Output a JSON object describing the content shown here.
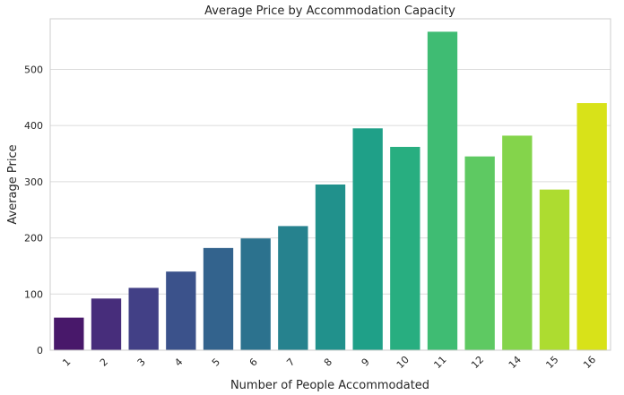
{
  "chart_data": {
    "type": "bar",
    "title": "Average Price by Accommodation Capacity",
    "xlabel": "Number of People Accommodated",
    "ylabel": "Average Price",
    "categories": [
      "1",
      "2",
      "3",
      "4",
      "5",
      "6",
      "7",
      "8",
      "9",
      "10",
      "11",
      "12",
      "14",
      "15",
      "16"
    ],
    "values": [
      58,
      92,
      111,
      140,
      182,
      199,
      221,
      295,
      395,
      362,
      567,
      345,
      382,
      286,
      440
    ],
    "ylim": [
      0,
      590
    ],
    "yticks": [
      0,
      100,
      200,
      300,
      400,
      500
    ],
    "grid": true,
    "colors": [
      "#48186a",
      "#472d7b",
      "#424086",
      "#3b528b",
      "#33638d",
      "#2c728e",
      "#26828e",
      "#21918c",
      "#1fa088",
      "#28ae80",
      "#3fbc73",
      "#5ec962",
      "#84d44b",
      "#addc30",
      "#d8e219"
    ]
  }
}
